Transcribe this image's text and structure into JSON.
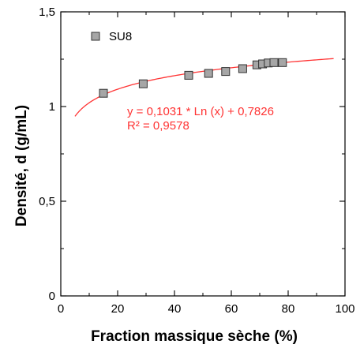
{
  "chart_data": {
    "type": "scatter",
    "xlabel": "Fraction massique sèche (%)",
    "ylabel": "Densité, d (g/mL)",
    "xlim": [
      0,
      100
    ],
    "ylim": [
      0,
      1.5
    ],
    "x_ticks": [
      0,
      20,
      40,
      60,
      80,
      100
    ],
    "x_tick_labels": [
      "0",
      "20",
      "40",
      "60",
      "80",
      "100"
    ],
    "y_ticks": [
      0,
      0.5,
      1,
      1.5
    ],
    "y_tick_labels": [
      "0",
      "0,5",
      "1",
      "1,5"
    ],
    "grid": false,
    "legend_position": "top-left",
    "series": [
      {
        "name": "SU8",
        "marker": "square",
        "color": "#a6a6a6",
        "x": [
          15,
          29,
          45,
          52,
          58,
          64,
          69,
          71,
          73,
          75,
          78
        ],
        "y": [
          1.07,
          1.12,
          1.165,
          1.175,
          1.185,
          1.2,
          1.22,
          1.225,
          1.23,
          1.232,
          1.232
        ]
      }
    ],
    "trendline": {
      "type": "logarithmic",
      "a": 0.1031,
      "b": 0.7826,
      "x_range": [
        5,
        96
      ],
      "color": "#ff3333",
      "equation": "y = 0,1031 * Ln (x) + 0,7826",
      "r_squared": "R² = 0,9578"
    }
  }
}
